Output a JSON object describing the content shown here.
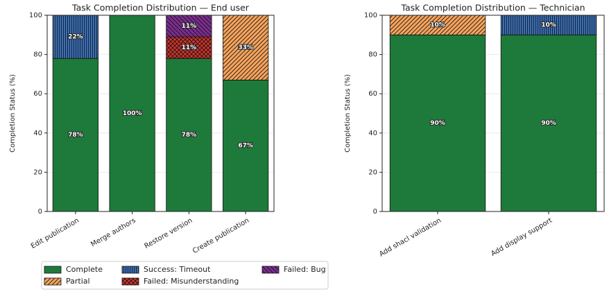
{
  "chart_data": [
    {
      "type": "bar",
      "stacked": true,
      "title": "Task Completion Distribution — End user",
      "ylabel": "Completion Status (%)",
      "categories": [
        "Edit publication",
        "Merge authors",
        "Restore version",
        "Create publication"
      ],
      "ylim": [
        0,
        100
      ],
      "yticks": [
        0,
        20,
        40,
        60,
        80,
        100
      ],
      "grid": true,
      "legend": "below",
      "series": [
        {
          "name": "Complete",
          "color": "#1e7a3a",
          "hatch": "",
          "values": [
            78,
            100,
            78,
            67
          ],
          "value_labels": [
            "78%",
            "100%",
            "78%",
            "67%"
          ]
        },
        {
          "name": "Partial",
          "color": "#f5a35c",
          "hatch": "/",
          "values": [
            0,
            0,
            0,
            33
          ],
          "value_labels": [
            null,
            null,
            null,
            "33%"
          ]
        },
        {
          "name": "Success: Timeout",
          "color": "#3b6fb6",
          "hatch": "|",
          "values": [
            22,
            0,
            0,
            0
          ],
          "value_labels": [
            "22%",
            null,
            null,
            null
          ]
        },
        {
          "name": "Failed: Misunderstanding",
          "color": "#d0342c",
          "hatch": "x",
          "values": [
            0,
            0,
            11,
            0
          ],
          "value_labels": [
            null,
            null,
            "11%",
            null
          ]
        },
        {
          "name": "Failed: Bug",
          "color": "#7b2d8e",
          "hatch": "\\",
          "values": [
            0,
            0,
            11,
            0
          ],
          "value_labels": [
            null,
            null,
            "11%",
            null
          ]
        }
      ]
    },
    {
      "type": "bar",
      "stacked": true,
      "title": "Task Completion Distribution — Technician",
      "ylabel": "Completion Status (%)",
      "categories": [
        "Add shacl validation",
        "Add display support"
      ],
      "ylim": [
        0,
        100
      ],
      "yticks": [
        0,
        20,
        40,
        60,
        80,
        100
      ],
      "grid": true,
      "series": [
        {
          "name": "Complete",
          "color": "#1e7a3a",
          "hatch": "",
          "values": [
            90,
            90
          ],
          "value_labels": [
            "90%",
            "90%"
          ]
        },
        {
          "name": "Partial",
          "color": "#f5a35c",
          "hatch": "/",
          "values": [
            10,
            0
          ],
          "value_labels": [
            "10%",
            null
          ]
        },
        {
          "name": "Success: Timeout",
          "color": "#3b6fb6",
          "hatch": "|",
          "values": [
            0,
            10
          ],
          "value_labels": [
            null,
            "10%"
          ]
        }
      ]
    }
  ]
}
